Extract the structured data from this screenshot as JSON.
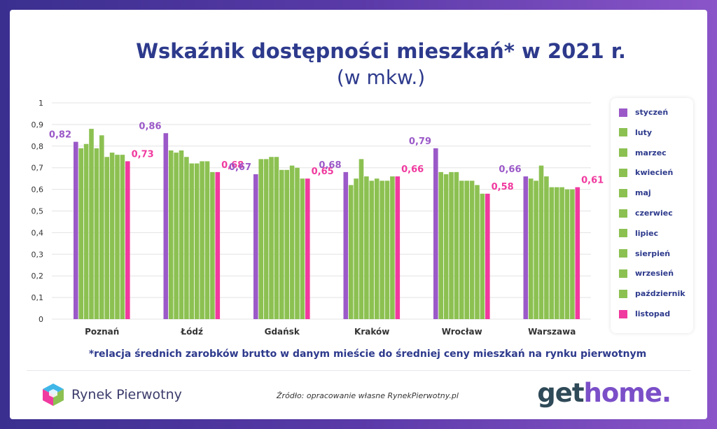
{
  "chart_data": {
    "type": "bar",
    "title": "Wskaźnik dostępności mieszkań* w 2021 r.",
    "subtitle": "(w mkw.)",
    "ylim": [
      0,
      1
    ],
    "yticks": [
      "0",
      "0,1",
      "0,2",
      "0,3",
      "0,4",
      "0,5",
      "0,6",
      "0,7",
      "0,8",
      "0,9",
      "1"
    ],
    "grid": true,
    "legend_position": "right",
    "categories": [
      "Poznań",
      "Łódź",
      "Gdańsk",
      "Kraków",
      "Wrocław",
      "Warszawa"
    ],
    "series": [
      {
        "name": "styczeń",
        "color": "#9b59c8",
        "values": [
          0.82,
          0.86,
          0.67,
          0.68,
          0.79,
          0.66
        ],
        "labels": [
          "0,82",
          "0,86",
          "0,67",
          "0,68",
          "0,79",
          "0,66"
        ]
      },
      {
        "name": "luty",
        "color": "#8cc152",
        "values": [
          0.79,
          0.78,
          0.74,
          0.62,
          0.68,
          0.65
        ]
      },
      {
        "name": "marzec",
        "color": "#8cc152",
        "values": [
          0.81,
          0.77,
          0.74,
          0.65,
          0.67,
          0.64
        ]
      },
      {
        "name": "kwiecień",
        "color": "#8cc152",
        "values": [
          0.88,
          0.78,
          0.75,
          0.74,
          0.68,
          0.71
        ]
      },
      {
        "name": "maj",
        "color": "#8cc152",
        "values": [
          0.79,
          0.75,
          0.75,
          0.66,
          0.68,
          0.66
        ]
      },
      {
        "name": "czerwiec",
        "color": "#8cc152",
        "values": [
          0.85,
          0.72,
          0.69,
          0.64,
          0.64,
          0.61
        ]
      },
      {
        "name": "lipiec",
        "color": "#8cc152",
        "values": [
          0.75,
          0.72,
          0.69,
          0.65,
          0.64,
          0.61
        ]
      },
      {
        "name": "sierpień",
        "color": "#8cc152",
        "values": [
          0.77,
          0.73,
          0.71,
          0.64,
          0.64,
          0.61
        ]
      },
      {
        "name": "wrzesień",
        "color": "#8cc152",
        "values": [
          0.76,
          0.73,
          0.7,
          0.64,
          0.62,
          0.6
        ]
      },
      {
        "name": "październik",
        "color": "#8cc152",
        "values": [
          0.76,
          0.68,
          0.65,
          0.66,
          0.58,
          0.6
        ]
      },
      {
        "name": "listopad",
        "color": "#f03a9f",
        "values": [
          0.73,
          0.68,
          0.65,
          0.66,
          0.58,
          0.61
        ],
        "labels": [
          "0,73",
          "0,68",
          "0,65",
          "0,66",
          "0,58",
          "0,61"
        ]
      }
    ]
  },
  "footnote": "*relacja średnich zarobków brutto w danym mieście do średniej ceny mieszkań na rynku pierwotnym",
  "source": "Źródło: opracowanie własne RynekPierwotny.pl",
  "brands": {
    "rynek_pierwotny": "Rynek Pierwotny",
    "gethome_part1": "get",
    "gethome_part2": "home."
  },
  "colors": {
    "title": "#2d3a8c",
    "january": "#9b59c8",
    "november": "#f03a9f",
    "other_months": "#8cc152"
  }
}
